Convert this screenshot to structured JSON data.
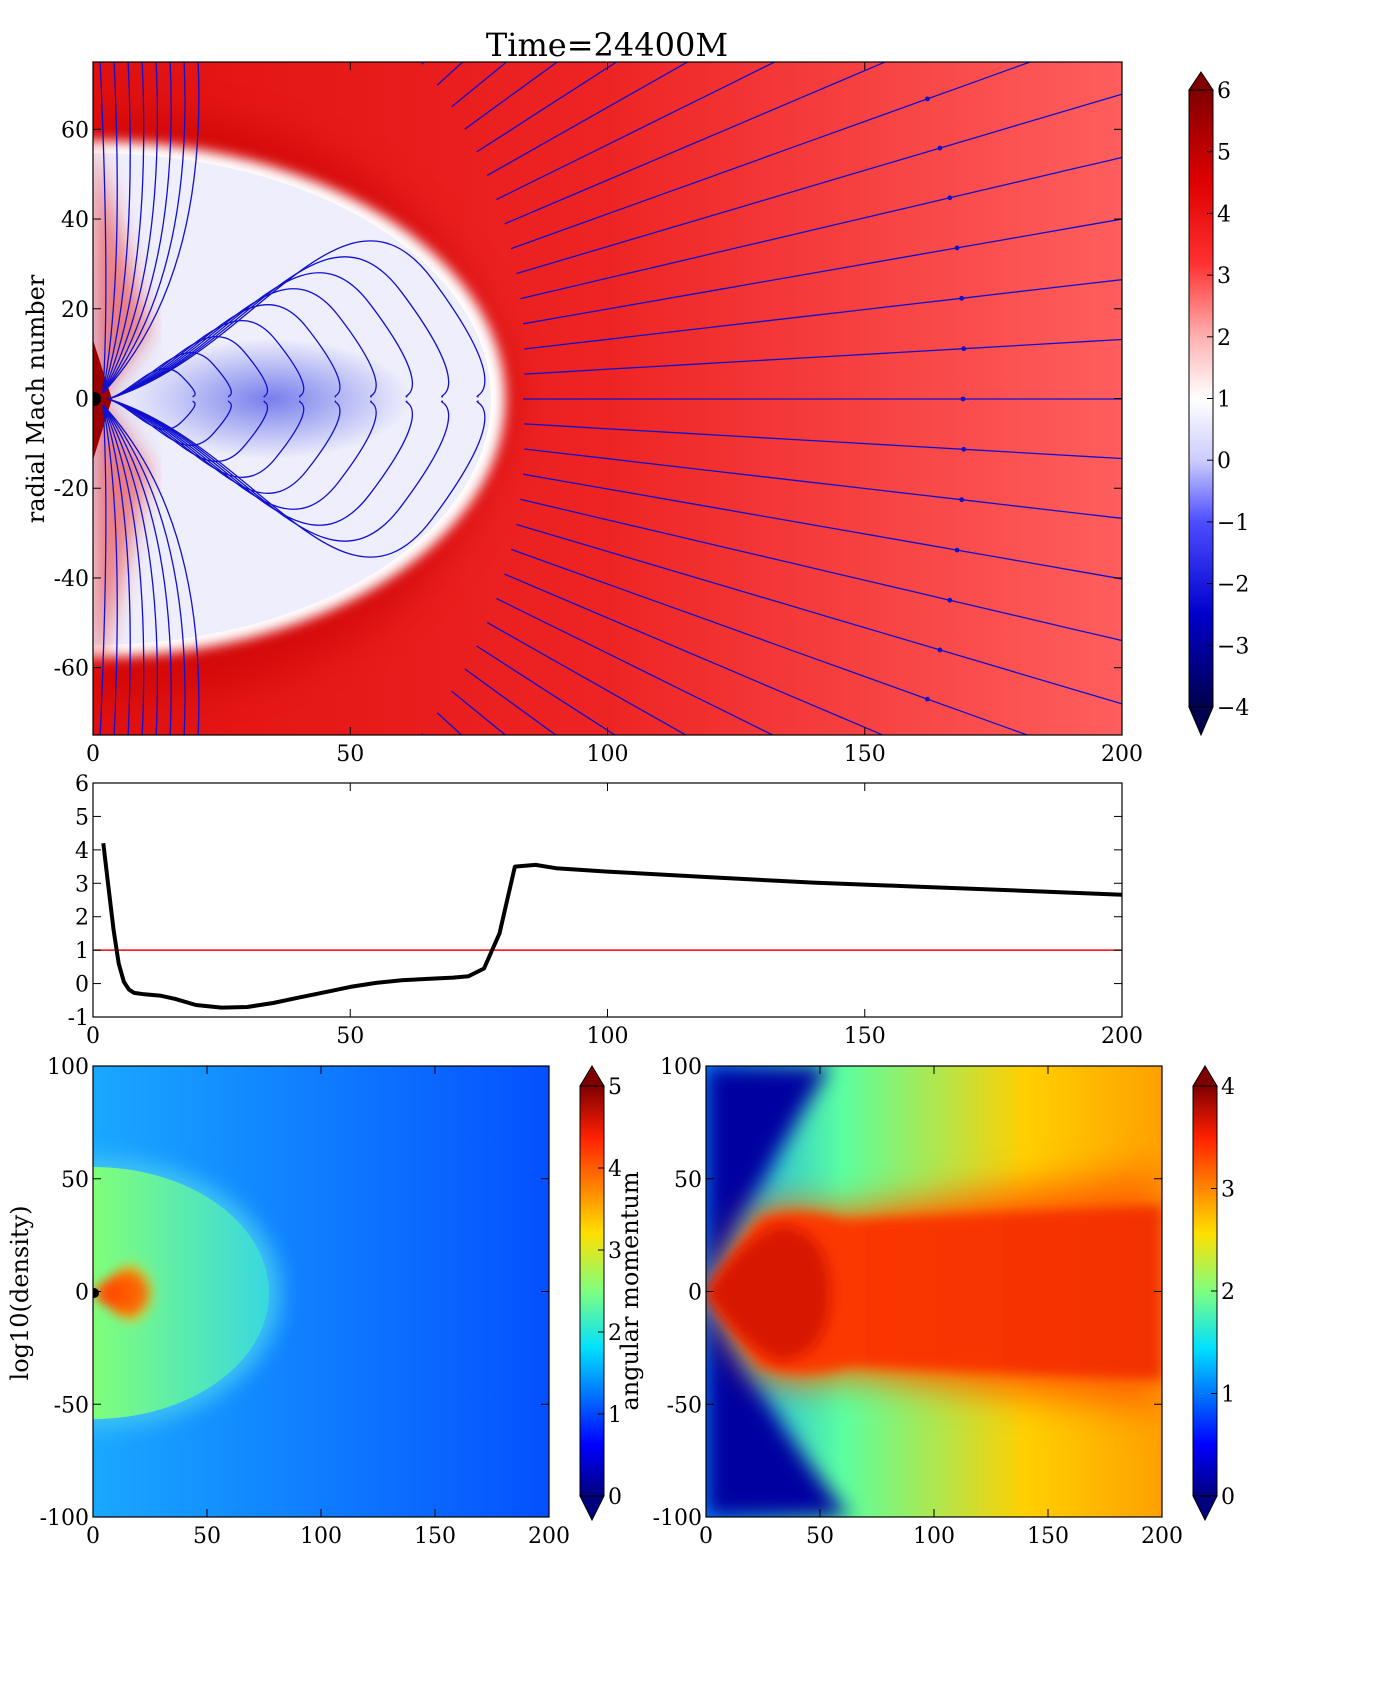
{
  "title": "Time=24400M",
  "chart_data": [
    {
      "type": "heatmap",
      "panel": "top",
      "ylabel": "radial Mach number",
      "xlim": [
        0,
        200
      ],
      "ylim": [
        -75,
        75
      ],
      "xticks": [
        "0",
        "50",
        "100",
        "150",
        "200"
      ],
      "yticks": [
        "-60",
        "-40",
        "-20",
        "0",
        "20",
        "40",
        "60"
      ],
      "overlay": "streamlines",
      "colormap": "seismic",
      "colorbar": {
        "range": [
          -4,
          6
        ],
        "ticks": [
          "−4",
          "−3",
          "−2",
          "−1",
          "0",
          "1",
          "2",
          "3",
          "4",
          "5",
          "6"
        ],
        "extend": "both"
      }
    },
    {
      "type": "line",
      "panel": "middle",
      "xlim": [
        0,
        200
      ],
      "ylim": [
        -1,
        6
      ],
      "xticks": [
        "0",
        "50",
        "100",
        "150",
        "200"
      ],
      "yticks": [
        "-1",
        "0",
        "1",
        "2",
        "3",
        "4",
        "5",
        "6"
      ],
      "series": [
        {
          "color": "#000000",
          "x": [
            2,
            3,
            4,
            5,
            6,
            7,
            8,
            10,
            13,
            16,
            20,
            25,
            30,
            35,
            40,
            45,
            50,
            55,
            60,
            65,
            70,
            73,
            76,
            79,
            82,
            86,
            90,
            100,
            120,
            140,
            160,
            180,
            200
          ],
          "y": [
            4.2,
            2.9,
            1.6,
            0.6,
            0.05,
            -0.18,
            -0.28,
            -0.32,
            -0.36,
            -0.46,
            -0.64,
            -0.72,
            -0.7,
            -0.58,
            -0.42,
            -0.26,
            -0.1,
            0.02,
            0.1,
            0.14,
            0.18,
            0.22,
            0.45,
            1.5,
            3.5,
            3.55,
            3.45,
            3.35,
            3.18,
            3.02,
            2.9,
            2.78,
            2.66
          ]
        }
      ],
      "reference_line": {
        "y": 1,
        "color": "#ff0000"
      }
    },
    {
      "type": "heatmap",
      "panel": "bottom-left",
      "ylabel": "log10(density)",
      "xlim": [
        0,
        200
      ],
      "ylim": [
        -100,
        100
      ],
      "xticks": [
        "0",
        "50",
        "100",
        "150",
        "200"
      ],
      "yticks": [
        "-100",
        "-50",
        "0",
        "50",
        "100"
      ],
      "colormap": "jet",
      "colorbar": {
        "range": [
          0,
          5
        ],
        "ticks": [
          "0",
          "1",
          "2",
          "3",
          "4",
          "5"
        ],
        "extend": "both",
        "label": "angular momentum"
      }
    },
    {
      "type": "heatmap",
      "panel": "bottom-right",
      "xlim": [
        0,
        200
      ],
      "ylim": [
        -100,
        100
      ],
      "xticks": [
        "0",
        "50",
        "100",
        "150",
        "200"
      ],
      "yticks": [
        "-100",
        "-50",
        "0",
        "50",
        "100"
      ],
      "colormap": "jet",
      "colorbar": {
        "range": [
          0,
          4
        ],
        "ticks": [
          "0",
          "1",
          "2",
          "3",
          "4"
        ],
        "extend": "both"
      }
    }
  ]
}
